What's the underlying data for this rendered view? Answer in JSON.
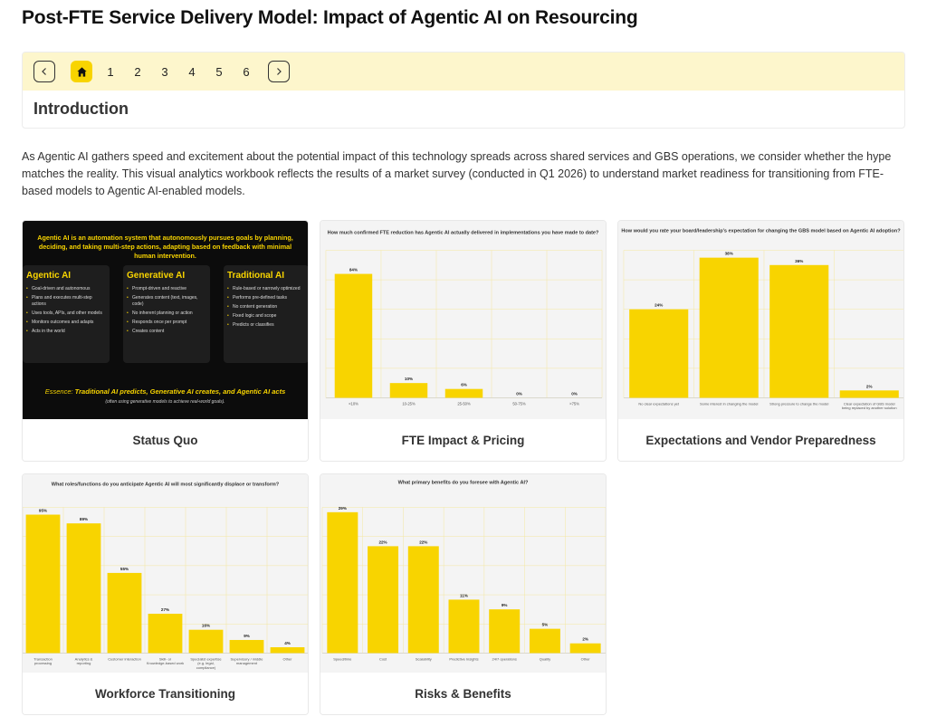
{
  "page": {
    "title": "Post-FTE Service Delivery Model: Impact of Agentic AI on Resourcing"
  },
  "nav": {
    "prev_icon": "chevron-left-icon",
    "home_icon": "home-icon",
    "next_icon": "chevron-right-icon",
    "pages": [
      "1",
      "2",
      "3",
      "4",
      "5",
      "6"
    ],
    "section_title": "Introduction",
    "accent_color": "#f8d400",
    "bar_color": "#fdf6cc"
  },
  "intro": {
    "text": "As Agentic AI gathers speed and excitement about the potential impact of this technology spreads across shared services and GBS operations, we consider whether the hype matches the reality. This visual analytics workbook reflects the results of a market survey (conducted in Q1 2026) to understand market readiness for transitioning from FTE-based models to Agentic AI-enabled models."
  },
  "cards": {
    "status_quo": {
      "label": "Status Quo",
      "heading": "Agentic AI is an automation system that autonomously pursues goals by planning, deciding, and taking multi-step actions, adapting based on feedback with minimal human intervention.",
      "boxes": [
        {
          "title": "Agentic AI",
          "items": [
            "Goal-driven and autonomous",
            "Plans and executes multi-step actions",
            "Uses tools, APIs, and other models",
            "Monitors outcomes and adapts",
            "Acts in the world"
          ]
        },
        {
          "title": "Generative AI",
          "items": [
            "Prompt-driven and reactive",
            "Generates content (text, images, code)",
            "No inherent planning or action",
            "Responds once per prompt",
            "Creates content"
          ]
        },
        {
          "title": "Traditional AI",
          "items": [
            "Rule-based or narrowly optimized",
            "Performs pre-defined tasks",
            "No content generation",
            "Fixed logic and scope",
            "Predicts or classifies"
          ]
        }
      ],
      "essence_prefix": "Essence: ",
      "essence_text": "Traditional AI predicts, Generative AI creates, and Agentic AI acts",
      "essence_sub": "(often using generative models to achieve real-world goals)."
    },
    "fte_impact": {
      "label": "FTE Impact & Pricing"
    },
    "expectations": {
      "label": "Expectations and Vendor Preparedness"
    },
    "workforce": {
      "label": "Workforce Transitioning"
    },
    "risks": {
      "label": "Risks & Benefits"
    }
  },
  "chart_data": [
    {
      "id": "fte",
      "type": "bar",
      "title": "How much confirmed FTE reduction has Agentic AI actually delivered in implementations you have made to date?",
      "title_underline_word": "delivered",
      "categories": [
        "<10%",
        "10-25%",
        "25-50%",
        "50-75%",
        ">75%"
      ],
      "values": [
        84,
        10,
        6,
        0,
        0
      ],
      "labels": [
        "84%",
        "10%",
        "6%",
        "0%",
        "0%"
      ],
      "ylim": [
        0,
        100
      ],
      "color": "#f8d400"
    },
    {
      "id": "expect",
      "type": "bar",
      "title": "How would you rate your board/leadership's expectation for changing the GBS model based on Agentic AI adoption?",
      "categories": [
        "No clear expectations yet",
        "Some interest in changing the model",
        "Strong pressure to change the model",
        "Clear expectation of GBS model being replaced by another solution"
      ],
      "values": [
        24,
        38,
        36,
        2
      ],
      "labels": [
        "24%",
        "38%",
        "36%",
        "2%"
      ],
      "ylim": [
        0,
        40
      ],
      "color": "#f8d400"
    },
    {
      "id": "roles",
      "type": "bar",
      "title": "What roles/functions do you anticipate Agentic AI will most significantly displace or transform?",
      "categories": [
        "Transaction processing",
        "Analytics & reporting",
        "Customer interaction",
        "Skill- or Knowledge-based work",
        "Specialist expertise (e.g. legal, compliance)",
        "Supervisory / middle management",
        "Other"
      ],
      "values": [
        95,
        89,
        55,
        27,
        16,
        9,
        4
      ],
      "labels": [
        "95%",
        "89%",
        "55%",
        "27%",
        "16%",
        "9%",
        "4%"
      ],
      "ylim": [
        0,
        100
      ],
      "color": "#f8d400"
    },
    {
      "id": "benefits",
      "type": "bar",
      "title": "What primary benefits do you foresee with Agentic AI?",
      "categories": [
        "Speed/time",
        "Cost",
        "Scalability",
        "Predictive Insights",
        "24/7 operations",
        "Quality",
        "Other"
      ],
      "values": [
        29,
        22,
        22,
        11,
        9,
        5,
        2
      ],
      "labels": [
        "29%",
        "22%",
        "22%",
        "11%",
        "9%",
        "5%",
        "2%"
      ],
      "ylim": [
        0,
        30
      ],
      "color": "#f8d400"
    }
  ]
}
